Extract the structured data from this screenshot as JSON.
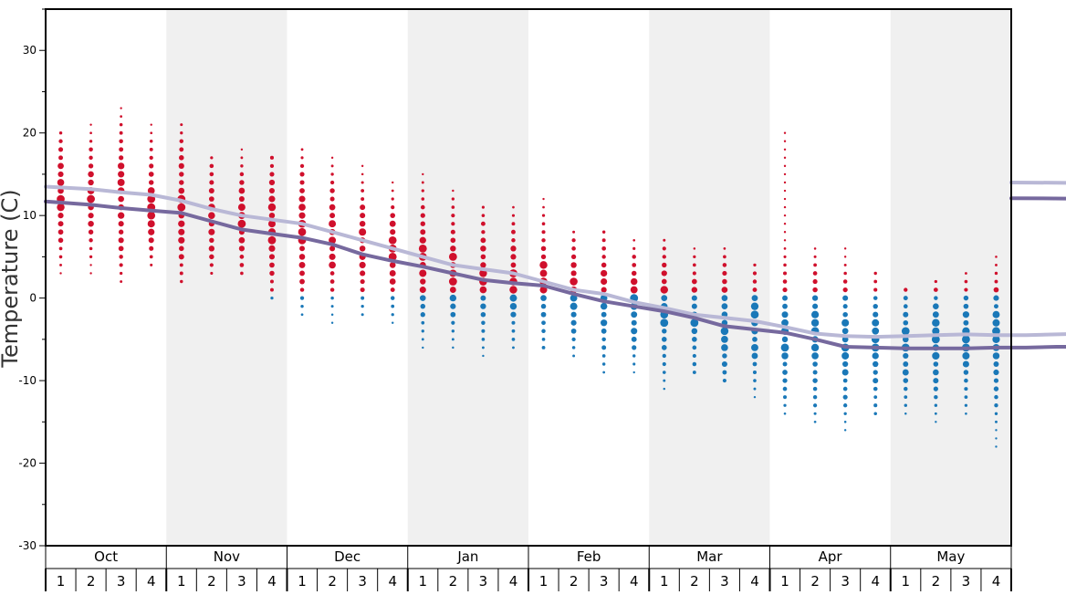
{
  "chart_data": {
    "type": "scatter",
    "ylabel": "Temperature (C)",
    "ylim": [
      -30,
      35
    ],
    "yticks": [
      30,
      20,
      10,
      0,
      -10,
      -20,
      -30
    ],
    "months": [
      "Oct",
      "Nov",
      "Dec",
      "Jan",
      "Feb",
      "Mar",
      "Apr",
      "May"
    ],
    "weeks": [
      "1",
      "2",
      "3",
      "4"
    ],
    "colors": {
      "warm_dot": "#d0102c",
      "cold_dot": "#1a78b8",
      "upper_line": "#b9b8d6",
      "lower_line": "#76699e",
      "shade": "#f0f0f0"
    },
    "series": [
      {
        "values": [
          13.5,
          13.2,
          12.8,
          12.5,
          11.8,
          10.8,
          10.0,
          9.5,
          9.0,
          8.0,
          7.0,
          6.0,
          5.0,
          4.0,
          3.5,
          3.0,
          2.0,
          1.0,
          0.5,
          -0.5,
          -1.2,
          -2.0,
          -2.4,
          -2.8,
          -3.5,
          -4.3,
          -4.6,
          -4.7,
          -4.6,
          -4.5,
          -4.4,
          -4.5,
          -4.5,
          -4.4,
          -4.3,
          -4.2,
          -4.0,
          -3.8,
          -2.8,
          -1.8,
          -1.3,
          -0.6,
          -0.4,
          -0.3,
          0.7,
          1.8,
          1.3,
          1.0,
          2.5,
          4.2,
          4.6,
          5.0,
          5.8,
          6.8,
          7.3,
          7.8,
          9.2,
          10.5,
          11.0,
          11.5,
          12.3,
          12.9,
          13.4,
          14.0
        ]
      },
      {
        "values": [
          11.7,
          11.3,
          10.9,
          10.6,
          10.3,
          9.3,
          8.3,
          7.8,
          7.3,
          6.5,
          5.3,
          4.5,
          3.8,
          3.0,
          2.2,
          1.8,
          1.5,
          0.5,
          -0.4,
          -1.0,
          -1.6,
          -2.4,
          -3.4,
          -3.8,
          -4.2,
          -5.0,
          -5.9,
          -6.0,
          -6.1,
          -6.1,
          -6.1,
          -6.0,
          -6.0,
          -5.9,
          -5.9,
          -5.8,
          -5.7,
          -5.7,
          -4.7,
          -3.7,
          -3.0,
          -2.3,
          -2.2,
          -2.0,
          -1.0,
          0.0,
          -0.3,
          -0.8,
          0.5,
          2.2,
          2.7,
          3.2,
          4.0,
          4.8,
          5.3,
          6.0,
          7.1,
          8.4,
          9.0,
          9.4,
          10.0,
          10.8,
          11.4,
          12.1
        ]
      }
    ]
  }
}
